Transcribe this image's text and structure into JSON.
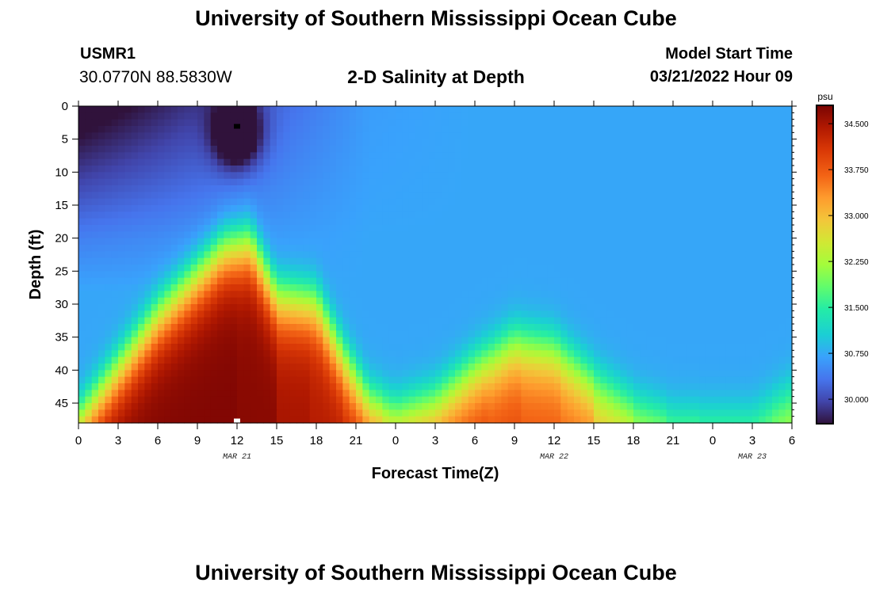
{
  "header": {
    "title": "University of Southern Mississippi Ocean Cube",
    "station_id": "USMR1",
    "coordinates": "30.0770N  88.5830W",
    "plot_title": "2-D Salinity at Depth",
    "model_start_label": "Model Start Time",
    "model_start_value": "03/21/2022 Hour 09"
  },
  "footer": {
    "title": "University of Southern Mississippi Ocean Cube"
  },
  "chart_data": {
    "type": "heatmap",
    "title": "2-D Salinity at Depth",
    "xlabel": "Forecast Time(Z)",
    "ylabel": "Depth (ft)",
    "x_ticks": [
      "0",
      "3",
      "6",
      "9",
      "12",
      "15",
      "18",
      "21",
      "0",
      "3",
      "6",
      "9",
      "12",
      "15",
      "18",
      "21",
      "0",
      "3",
      "6"
    ],
    "x_range_hours": [
      0,
      54
    ],
    "date_labels": [
      {
        "text": "MAR 21",
        "hour": 12
      },
      {
        "text": "MAR 22",
        "hour": 36
      },
      {
        "text": "MAR 23",
        "hour": 51
      }
    ],
    "y_ticks": [
      "0",
      "5",
      "10",
      "15",
      "20",
      "25",
      "30",
      "35",
      "40",
      "45"
    ],
    "ylim": [
      0,
      48
    ],
    "y_inverted": true,
    "colorbar": {
      "unit": "psu",
      "min": 29.6,
      "max": 34.8,
      "tick_values": [
        34.5,
        33.75,
        33.0,
        32.25,
        31.5,
        30.75,
        30.0
      ],
      "tick_labels": [
        "34.500",
        "33.750",
        "33.000",
        "32.250",
        "31.500",
        "30.750",
        "30.000"
      ]
    },
    "markers": [
      {
        "hour": 12,
        "depth": 3,
        "color": "#000000"
      },
      {
        "hour": 12,
        "depth": 48,
        "color": "#ffffff"
      }
    ]
  }
}
